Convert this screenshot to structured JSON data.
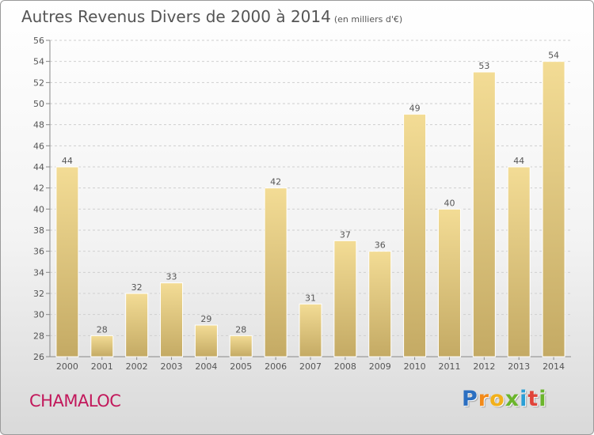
{
  "chart_data": {
    "type": "bar",
    "title": "Autres Revenus Divers de 2000 à 2014",
    "unit": "(en milliers d'€)",
    "categories": [
      "2000",
      "2001",
      "2002",
      "2003",
      "2004",
      "2005",
      "2006",
      "2007",
      "2008",
      "2009",
      "2010",
      "2011",
      "2012",
      "2013",
      "2014"
    ],
    "values": [
      44,
      28,
      32,
      33,
      29,
      28,
      42,
      31,
      37,
      36,
      49,
      40,
      53,
      44,
      54
    ],
    "ylim": [
      26,
      56
    ],
    "yticks": [
      26,
      28,
      30,
      32,
      34,
      36,
      38,
      40,
      42,
      44,
      46,
      48,
      50,
      52,
      54,
      56
    ],
    "grid": true,
    "xlabel": "",
    "ylabel": ""
  },
  "commune": "CHAMALOC",
  "logo": {
    "letters": [
      "P",
      "r",
      "o",
      "x",
      "i",
      "t",
      "i"
    ],
    "colors": [
      "#2b6fc1",
      "#f28a1a",
      "#f2b01a",
      "#6bb52c",
      "#2b9fd6",
      "#e0443a",
      "#6bb52c"
    ]
  },
  "colors": {
    "bar_top": "#f3dc95",
    "bar_bottom": "#c4aa64",
    "grid": "#cfcfcf",
    "text": "#555555",
    "commune": "#c2185b"
  }
}
